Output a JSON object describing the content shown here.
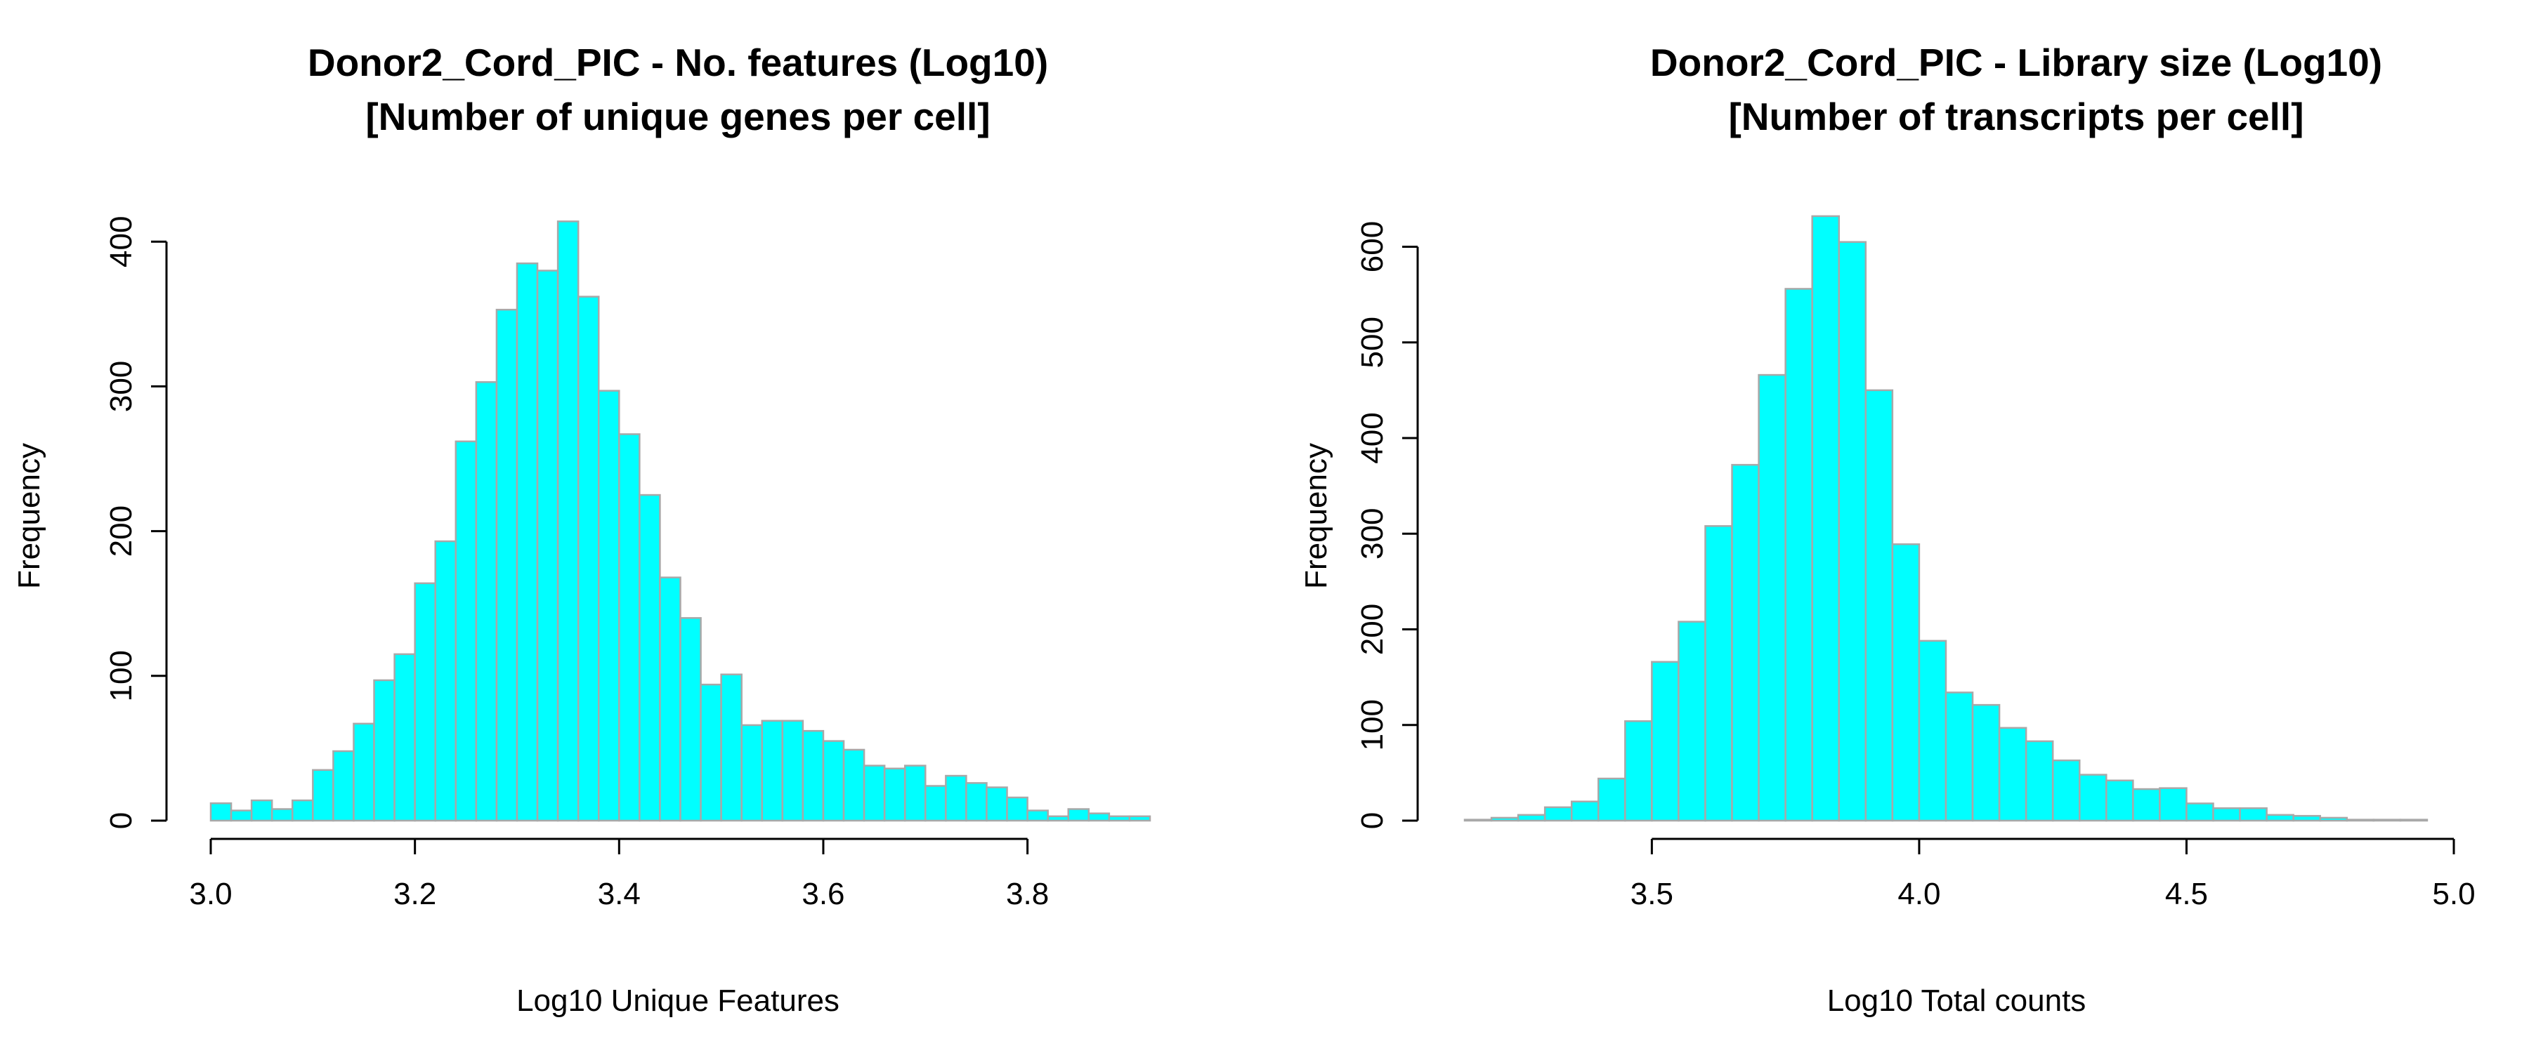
{
  "chart_data": [
    {
      "type": "bar",
      "title_lines": [
        "Donor2_Cord_PIC - No. features (Log10)",
        "[Number of unique genes per cell]"
      ],
      "xlabel": "Log10 Unique Features",
      "ylabel": "Frequency",
      "xlim": [
        3.0,
        3.92
      ],
      "ylim": [
        0,
        420
      ],
      "xticks": [
        "3.0",
        "3.2",
        "3.4",
        "3.6",
        "3.8"
      ],
      "yticks": [
        "0",
        "100",
        "200",
        "300",
        "400"
      ],
      "bin_start": 3.0,
      "bin_width": 0.02,
      "bar_color": "#00ffff",
      "values": [
        12,
        7,
        14,
        8,
        14,
        35,
        48,
        67,
        97,
        115,
        164,
        193,
        262,
        303,
        353,
        385,
        380,
        414,
        362,
        297,
        267,
        225,
        168,
        140,
        94,
        101,
        66,
        69,
        69,
        62,
        55,
        49,
        38,
        36,
        38,
        24,
        31,
        26,
        23,
        16,
        7,
        3,
        8,
        5,
        3,
        3
      ]
    },
    {
      "type": "bar",
      "title_lines": [
        "Donor2_Cord_PIC - Library size (Log10)",
        "[Number of transcripts per cell]"
      ],
      "xlabel": "Log10 Total counts",
      "ylabel": "Frequency",
      "xlim": [
        3.15,
        5.0
      ],
      "ylim": [
        0,
        640
      ],
      "xticks": [
        "3.5",
        "4.0",
        "4.5",
        "5.0"
      ],
      "yticks": [
        "0",
        "100",
        "200",
        "300",
        "400",
        "500",
        "600"
      ],
      "bin_start": 3.15,
      "bin_width": 0.05,
      "bar_color": "#00ffff",
      "values": [
        1,
        3,
        6,
        14,
        20,
        44,
        104,
        166,
        208,
        308,
        372,
        466,
        556,
        632,
        605,
        450,
        289,
        188,
        134,
        121,
        97,
        83,
        63,
        48,
        42,
        33,
        34,
        18,
        13,
        13,
        6,
        5,
        3,
        1,
        1,
        1
      ]
    }
  ]
}
